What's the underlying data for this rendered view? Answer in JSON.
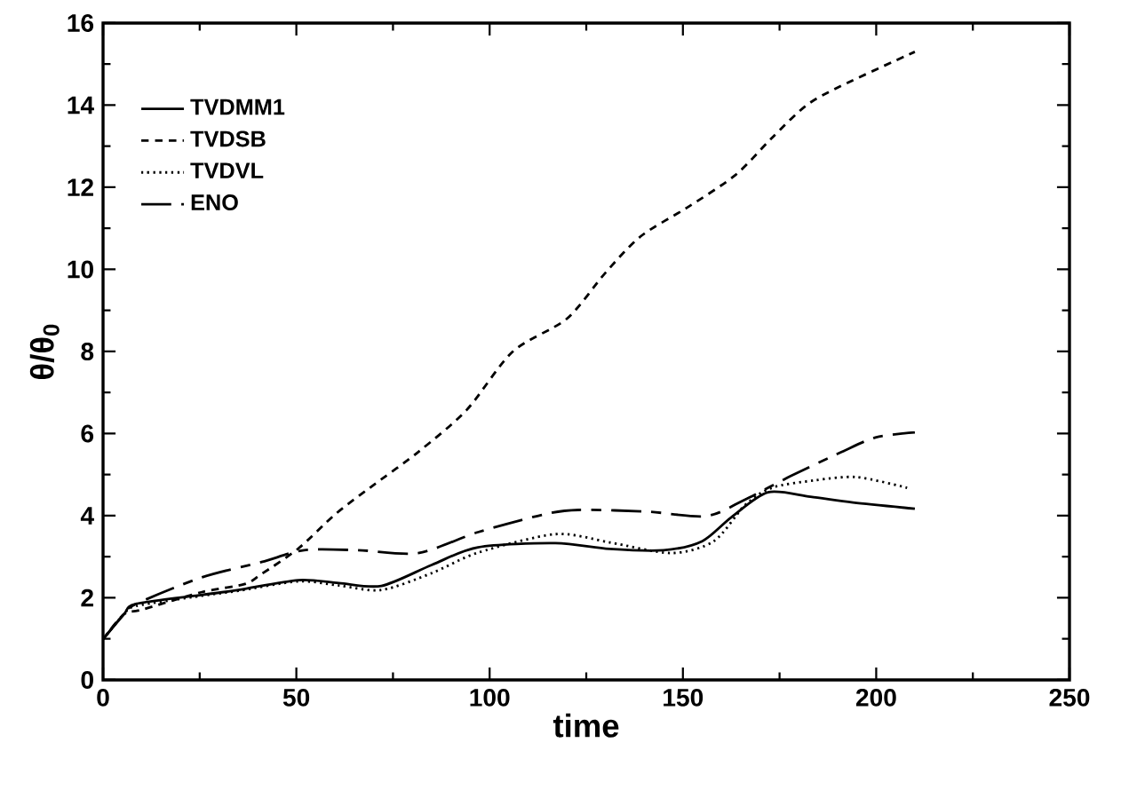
{
  "chart_data": {
    "type": "line",
    "xlabel": "time",
    "ylabel": "θ/θ$_{0}$",
    "xlim": [
      0,
      250
    ],
    "xticks": [
      0,
      50,
      100,
      150,
      200,
      250
    ],
    "ylim": [
      0,
      16
    ],
    "yticks": [
      0,
      2,
      4,
      6,
      8,
      10,
      12,
      14,
      16
    ],
    "grid": false,
    "legend": "top left",
    "marker": "none",
    "series": [
      {
        "name": "TVDMM1",
        "color": "#000000",
        "line_style": "solid",
        "x": [
          0,
          5.4,
          8.5,
          25.6,
          35,
          50.5,
          61,
          72,
          85,
          97,
          117,
          131,
          145,
          155,
          162.5,
          172,
          183,
          194,
          210
        ],
        "values": [
          0.99,
          1.6,
          1.85,
          2.07,
          2.19,
          2.43,
          2.36,
          2.29,
          2.8,
          3.23,
          3.33,
          3.19,
          3.16,
          3.38,
          3.96,
          4.57,
          4.46,
          4.32,
          4.17
        ]
      },
      {
        "name": "TVDSB",
        "color": "#000000",
        "line_style": "dashed",
        "x": [
          0,
          5.4,
          10,
          25.6,
          36.5,
          41,
          50.5,
          60,
          69,
          81.5,
          94,
          106,
          120,
          129.8,
          139,
          151,
          163.6,
          173,
          182,
          191.6,
          210
        ],
        "values": [
          0.99,
          1.6,
          1.71,
          2.14,
          2.33,
          2.58,
          3.2,
          4.03,
          4.68,
          5.55,
          6.57,
          8.0,
          8.8,
          9.9,
          10.8,
          11.5,
          12.3,
          13.2,
          14.0,
          14.5,
          15.3
        ]
      },
      {
        "name": "TVDVL",
        "color": "#000000",
        "line_style": "dotted",
        "x": [
          0,
          5.4,
          8.5,
          25.6,
          35,
          50.5,
          61,
          72,
          85,
          97,
          117,
          131,
          147,
          158,
          166,
          173,
          184,
          195,
          208
        ],
        "values": [
          0.99,
          1.6,
          1.8,
          2.05,
          2.17,
          2.4,
          2.3,
          2.19,
          2.6,
          3.1,
          3.55,
          3.35,
          3.09,
          3.38,
          4.25,
          4.68,
          4.86,
          4.94,
          4.68
        ]
      },
      {
        "name": "ENO",
        "color": "#000000",
        "line_style": "dashdot",
        "x": [
          0,
          5.4,
          8.5,
          25.6,
          41,
          52,
          66,
          81.5,
          97,
          114,
          123,
          140.6,
          156,
          166,
          178,
          191,
          200,
          210
        ],
        "values": [
          0.99,
          1.6,
          1.85,
          2.5,
          2.87,
          3.16,
          3.16,
          3.09,
          3.6,
          4.03,
          4.14,
          4.1,
          3.99,
          4.39,
          4.97,
          5.55,
          5.91,
          6.03
        ]
      }
    ]
  }
}
